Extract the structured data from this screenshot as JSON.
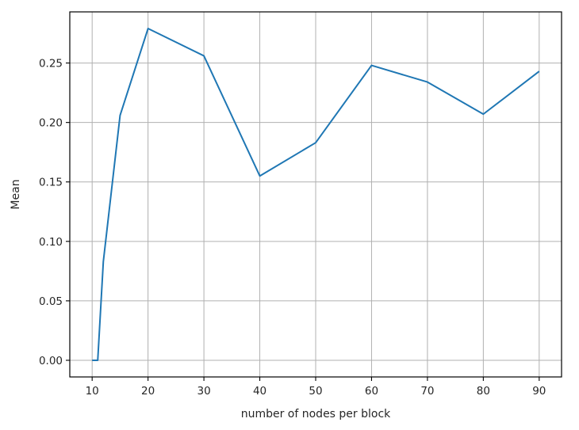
{
  "chart_data": {
    "type": "line",
    "title": "",
    "xlabel": "number of nodes per block",
    "ylabel": "Mean",
    "xlim": [
      6,
      94
    ],
    "ylim": [
      -0.014,
      0.293
    ],
    "xticks": [
      10,
      20,
      30,
      40,
      50,
      60,
      70,
      80,
      90
    ],
    "xtick_labels": [
      "10",
      "20",
      "30",
      "40",
      "50",
      "60",
      "70",
      "80",
      "90"
    ],
    "yticks": [
      0.0,
      0.05,
      0.1,
      0.15,
      0.2,
      0.25
    ],
    "ytick_labels": [
      "0.00",
      "0.05",
      "0.10",
      "0.15",
      "0.20",
      "0.25"
    ],
    "grid": true,
    "series": [
      {
        "color": "#1f77b4",
        "x": [
          10,
          11,
          12,
          15,
          20,
          30,
          40,
          50,
          60,
          70,
          80,
          90
        ],
        "y": [
          0.0,
          0.0,
          0.083,
          0.206,
          0.279,
          0.256,
          0.155,
          0.183,
          0.248,
          0.234,
          0.207,
          0.243
        ]
      }
    ]
  }
}
